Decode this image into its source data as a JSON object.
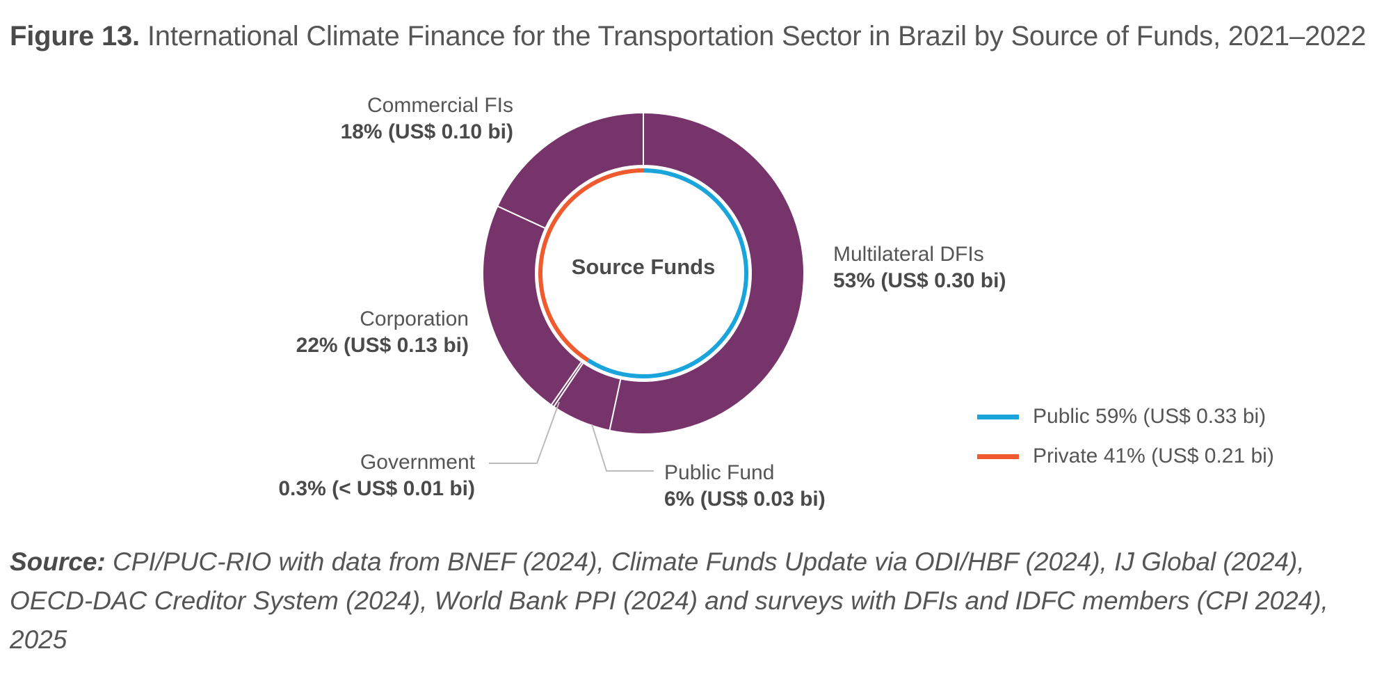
{
  "figure": {
    "label": "Figure 13.",
    "title": "International Climate Finance for the Transportation Sector in Brazil by Source of Funds, 2021–2022"
  },
  "chart_data": {
    "type": "pie",
    "center_label": "Source Funds",
    "outer_ring": [
      {
        "name": "Multilateral DFIs",
        "percent": 53,
        "value_label": "53% (US$ 0.30 bi)",
        "color": "#77346b"
      },
      {
        "name": "Public Fund",
        "percent": 6,
        "value_label": "6% (US$ 0.03 bi)",
        "color": "#77346b"
      },
      {
        "name": "Government",
        "percent": 0.3,
        "value_label": "0.3% (< US$ 0.01 bi)",
        "color": "#77346b"
      },
      {
        "name": "Corporation",
        "percent": 22,
        "value_label": "22% (US$ 0.13 bi)",
        "color": "#77346b"
      },
      {
        "name": "Commercial FIs",
        "percent": 18,
        "value_label": "18% (US$ 0.10 bi)",
        "color": "#77346b"
      }
    ],
    "inner_ring": [
      {
        "name": "Public",
        "percent": 59,
        "legend_label": "Public 59% (US$ 0.33 bi)",
        "color": "#1aa4dc"
      },
      {
        "name": "Private",
        "percent": 41,
        "legend_label": "Private 41% (US$ 0.21 bi)",
        "color": "#ef5a2f"
      }
    ],
    "legend_position": "right"
  },
  "source": {
    "label": "Source:",
    "text": "CPI/PUC-RIO with data from BNEF (2024), Climate Funds Update via ODI/HBF (2024), IJ Global (2024), OECD-DAC Creditor System (2024), World Bank PPI (2024) and surveys with DFIs and IDFC members (CPI 2024), 2025"
  }
}
